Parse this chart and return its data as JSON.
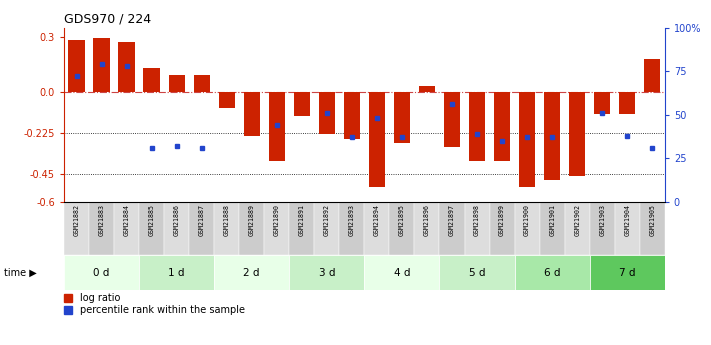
{
  "title": "GDS970 / 224",
  "samples": [
    "GSM21882",
    "GSM21883",
    "GSM21884",
    "GSM21885",
    "GSM21886",
    "GSM21887",
    "GSM21888",
    "GSM21889",
    "GSM21890",
    "GSM21891",
    "GSM21892",
    "GSM21893",
    "GSM21894",
    "GSM21895",
    "GSM21896",
    "GSM21897",
    "GSM21898",
    "GSM21899",
    "GSM21900",
    "GSM21901",
    "GSM21902",
    "GSM21903",
    "GSM21904",
    "GSM21905"
  ],
  "log_ratio": [
    0.285,
    0.295,
    0.27,
    0.13,
    0.09,
    0.09,
    -0.09,
    -0.24,
    -0.38,
    -0.13,
    -0.23,
    -0.26,
    -0.52,
    -0.28,
    0.03,
    -0.3,
    -0.38,
    -0.38,
    -0.52,
    -0.48,
    -0.46,
    -0.12,
    -0.12,
    0.18
  ],
  "percentile_rank": [
    0.72,
    0.79,
    0.78,
    0.31,
    0.32,
    0.31,
    null,
    null,
    0.44,
    null,
    0.51,
    0.37,
    0.48,
    0.37,
    null,
    0.56,
    0.39,
    0.35,
    0.37,
    0.37,
    null,
    0.51,
    0.38,
    0.31
  ],
  "time_groups": [
    {
      "label": "0 d",
      "start": 0,
      "end": 3
    },
    {
      "label": "1 d",
      "start": 3,
      "end": 6
    },
    {
      "label": "2 d",
      "start": 6,
      "end": 9
    },
    {
      "label": "3 d",
      "start": 9,
      "end": 12
    },
    {
      "label": "4 d",
      "start": 12,
      "end": 15
    },
    {
      "label": "5 d",
      "start": 15,
      "end": 18
    },
    {
      "label": "6 d",
      "start": 18,
      "end": 21
    },
    {
      "label": "7 d",
      "start": 21,
      "end": 24
    }
  ],
  "group_colors": [
    "#e8ffe8",
    "#c8f0c8",
    "#e8ffe8",
    "#c8f0c8",
    "#e8ffe8",
    "#c8f0c8",
    "#a8e8a8",
    "#5ec85e"
  ],
  "ylim_min": -0.6,
  "ylim_max": 0.35,
  "yticks_left": [
    0.3,
    0.0,
    -0.225,
    -0.45,
    -0.6
  ],
  "yticks_right_vals": [
    1.0,
    0.75,
    0.5,
    0.25,
    0.0
  ],
  "yticks_right_labels": [
    "100%",
    "75",
    "50",
    "25",
    "0"
  ],
  "bar_color": "#cc2200",
  "dot_color": "#2244cc",
  "zero_line_color": "#cc4444",
  "dotline1": -0.225,
  "dotline2": -0.45,
  "legend_log_ratio": "log ratio",
  "legend_percentile": "percentile rank within the sample",
  "time_label": "time"
}
